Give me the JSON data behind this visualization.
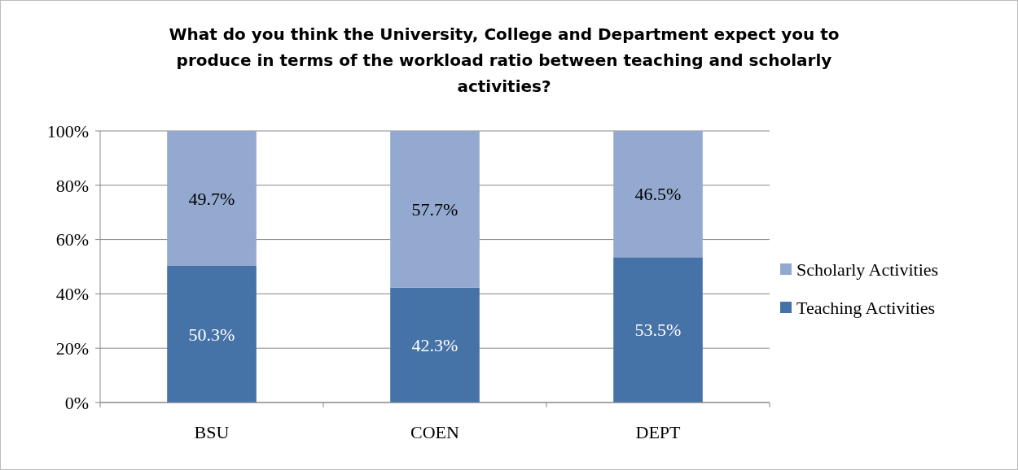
{
  "chart_data": {
    "type": "bar",
    "stacked": true,
    "title": "What do you think the University, College and Department expect you to produce in terms of the workload ratio between teaching and scholarly activities?",
    "categories": [
      "BSU",
      "COEN",
      "DEPT"
    ],
    "series": [
      {
        "name": "Teaching Activities",
        "color": "#4572a7",
        "values": [
          50.3,
          42.3,
          53.5
        ],
        "value_labels": [
          "50.3%",
          "42.3%",
          "53.5%"
        ]
      },
      {
        "name": "Scholarly Activities",
        "color": "#93a9cf",
        "values": [
          49.7,
          57.7,
          46.5
        ],
        "value_labels": [
          "49.7%",
          "57.7%",
          "46.5%"
        ]
      }
    ],
    "ylim": [
      0,
      100
    ],
    "yticks": [
      {
        "value": 0,
        "label": "0%"
      },
      {
        "value": 20,
        "label": "20%"
      },
      {
        "value": 40,
        "label": "40%"
      },
      {
        "value": 60,
        "label": "60%"
      },
      {
        "value": 80,
        "label": "80%"
      },
      {
        "value": 100,
        "label": "100%"
      }
    ],
    "grid": "y",
    "legend": "right"
  }
}
